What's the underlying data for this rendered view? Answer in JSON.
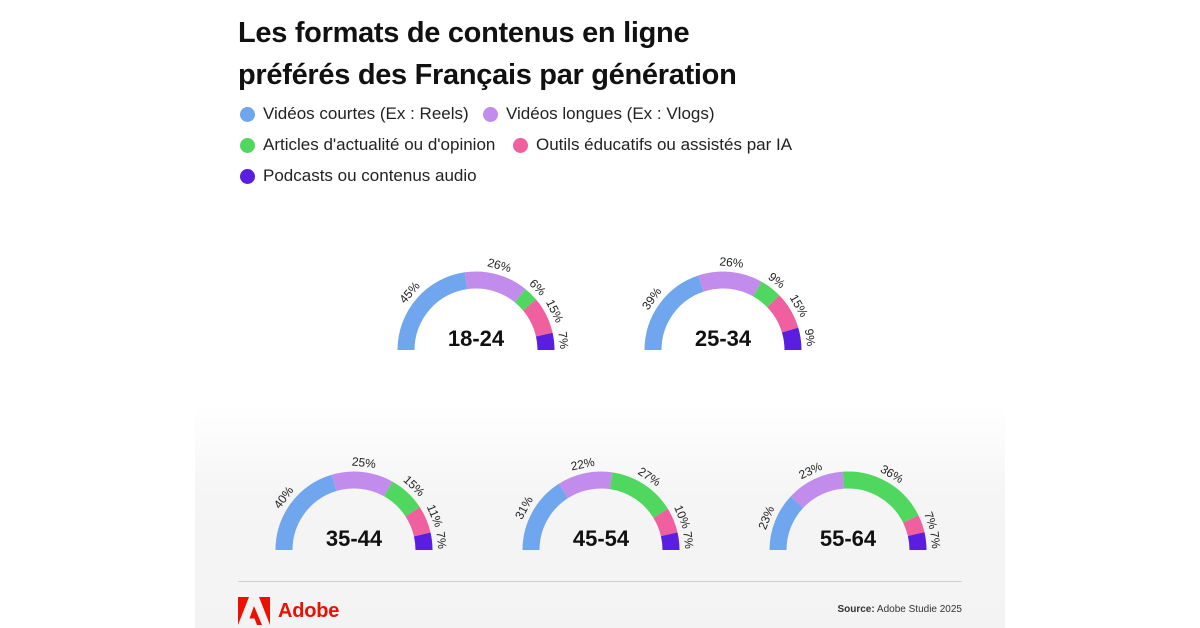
{
  "title": {
    "line1": "Les formats de contenus en ligne",
    "line2": "préférés des Français par génération"
  },
  "legend": [
    {
      "label": "Vidéos courtes  (Ex : Reels)",
      "color": "#6fa6ee"
    },
    {
      "label": "Vidéos longues (Ex : Vlogs)",
      "color": "#c28cec"
    },
    {
      "label": "Articles d'actualité ou d'opinion",
      "color": "#4fd760"
    },
    {
      "label": "Outils éducatifs ou assistés par IA",
      "color": "#f0609f"
    },
    {
      "label": "Podcasts ou contenus audio",
      "color": "#5a1ee0"
    }
  ],
  "chart_data": [
    {
      "type": "pie",
      "title": "18-24",
      "categories": [
        "Vidéos courtes  (Ex : Reels)",
        "Vidéos longues (Ex : Vlogs)",
        "Articles d'actualité ou d'opinion",
        "Outils éducatifs ou assistés par IA",
        "Podcasts ou contenus audio"
      ],
      "values": [
        45,
        26,
        6,
        15,
        7
      ],
      "labels": [
        "45%",
        "26%",
        "6%",
        "15%",
        "7%"
      ]
    },
    {
      "type": "pie",
      "title": "25-34",
      "categories": [
        "Vidéos courtes  (Ex : Reels)",
        "Vidéos longues (Ex : Vlogs)",
        "Articles d'actualité ou d'opinion",
        "Outils éducatifs ou assistés par IA",
        "Podcasts ou contenus audio"
      ],
      "values": [
        39,
        26,
        9,
        15,
        9
      ],
      "labels": [
        "39%",
        "26%",
        "9%",
        "15%",
        "9%"
      ]
    },
    {
      "type": "pie",
      "title": "35-44",
      "categories": [
        "Vidéos courtes  (Ex : Reels)",
        "Vidéos longues (Ex : Vlogs)",
        "Articles d'actualité ou d'opinion",
        "Outils éducatifs ou assistés par IA",
        "Podcasts ou contenus audio"
      ],
      "values": [
        40,
        25,
        15,
        11,
        7
      ],
      "labels": [
        "40%",
        "25%",
        "15%",
        "11%",
        "7%"
      ]
    },
    {
      "type": "pie",
      "title": "45-54",
      "categories": [
        "Vidéos courtes  (Ex : Reels)",
        "Vidéos longues (Ex : Vlogs)",
        "Articles d'actualité ou d'opinion",
        "Outils éducatifs ou assistés par IA",
        "Podcasts ou contenus audio"
      ],
      "values": [
        31,
        22,
        27,
        10,
        7
      ],
      "labels": [
        "31%",
        "22%",
        "27%",
        "10%",
        "7%"
      ]
    },
    {
      "type": "pie",
      "title": "55-64",
      "categories": [
        "Vidéos courtes  (Ex : Reels)",
        "Vidéos longues (Ex : Vlogs)",
        "Articles d'actualité ou d'opinion",
        "Outils éducatifs ou assistés par IA",
        "Podcasts ou contenus audio"
      ],
      "values": [
        23,
        23,
        36,
        7,
        7
      ],
      "labels": [
        "23%",
        "23%",
        "36%",
        "7%",
        "7%"
      ]
    }
  ],
  "footer": {
    "brand": "Adobe",
    "brand_color": "#eb1000",
    "source_label": "Source:",
    "source_text": "Adobe Studie 2025"
  }
}
